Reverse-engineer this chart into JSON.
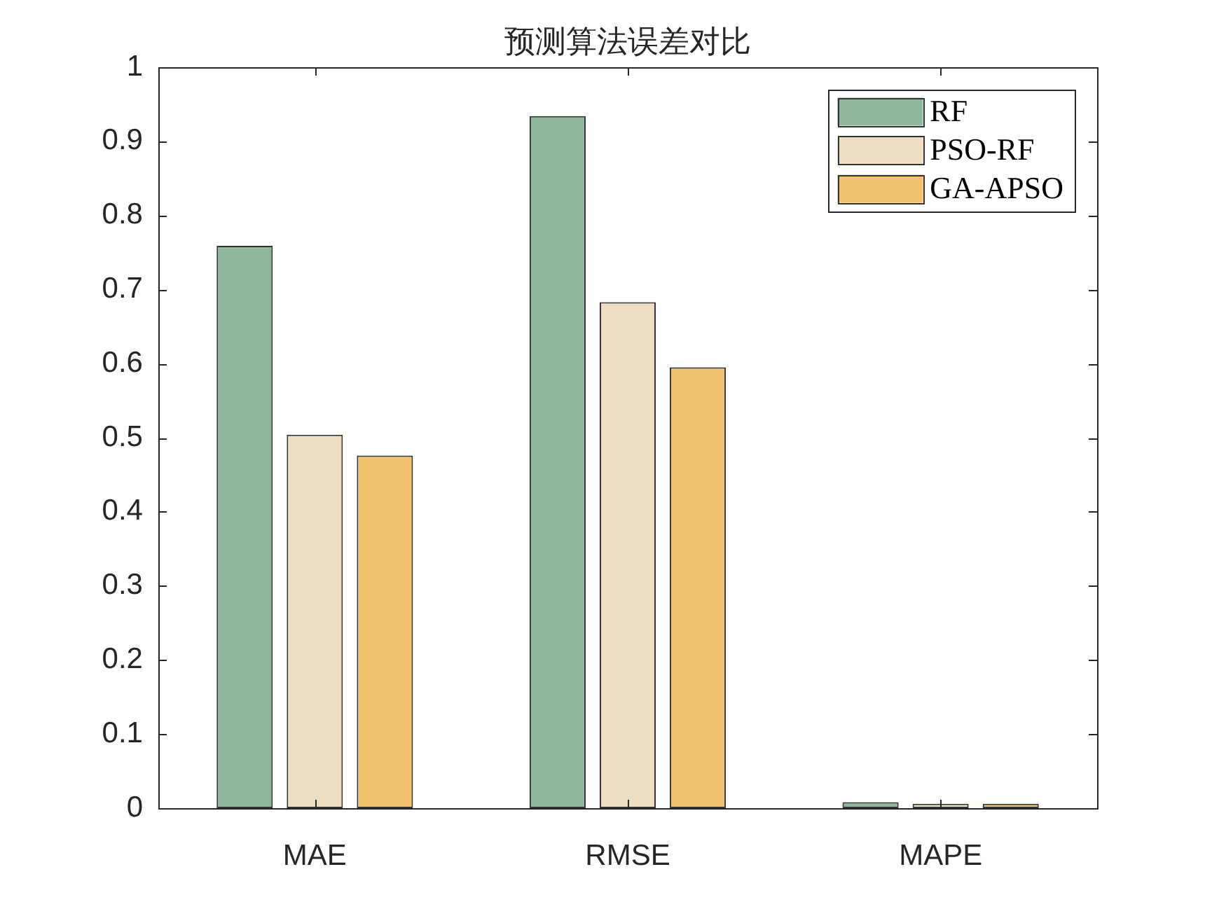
{
  "chart_data": {
    "type": "bar",
    "title": "预测算法误差对比",
    "categories": [
      "MAE",
      "RMSE",
      "MAPE"
    ],
    "series": [
      {
        "name": "RF",
        "color": "#8fb79b",
        "values": [
          0.759,
          0.934,
          0.008
        ]
      },
      {
        "name": "PSO-RF",
        "color": "#eddec3",
        "values": [
          0.504,
          0.683,
          0.006
        ]
      },
      {
        "name": "GA-APSO",
        "color": "#f0c270",
        "values": [
          0.476,
          0.595,
          0.006
        ]
      }
    ],
    "ylim": [
      0,
      1
    ],
    "yticks": [
      0,
      0.1,
      0.2,
      0.3,
      0.4,
      0.5,
      0.6,
      0.7,
      0.8,
      0.9,
      1
    ],
    "legend": "top right"
  }
}
